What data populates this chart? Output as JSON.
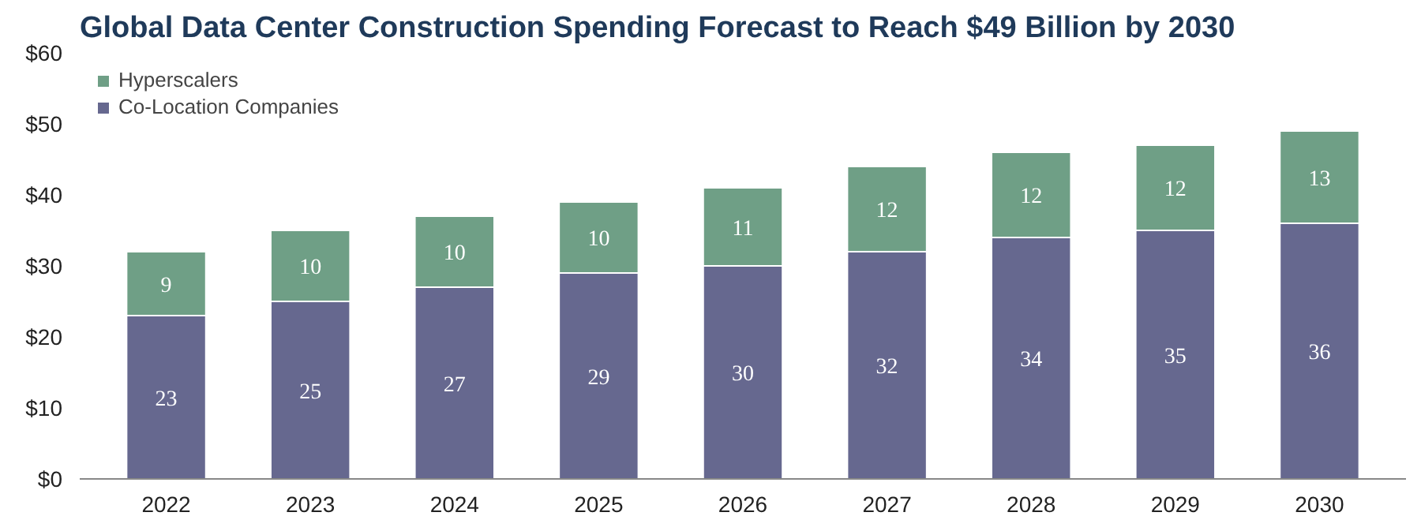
{
  "chart_data": {
    "type": "bar",
    "title": "Global Data Center Construction Spending Forecast to Reach $49 Billion by 2030",
    "categories": [
      "2022",
      "2023",
      "2024",
      "2025",
      "2026",
      "2027",
      "2028",
      "2029",
      "2030"
    ],
    "stacked": true,
    "data_labels": true,
    "legend": "top left",
    "grid": false,
    "ylim": [
      0,
      60
    ],
    "yticks": [
      {
        "value": 0,
        "label": "$0"
      },
      {
        "value": 10,
        "label": "$10"
      },
      {
        "value": 20,
        "label": "$20"
      },
      {
        "value": 30,
        "label": "$30"
      },
      {
        "value": 40,
        "label": "$40"
      },
      {
        "value": 50,
        "label": "$50"
      },
      {
        "value": 60,
        "label": "$60"
      }
    ],
    "series": [
      {
        "name": "Co-Location Companies",
        "color": "#66688f",
        "values": [
          23,
          25,
          27,
          29,
          30,
          32,
          34,
          35,
          36
        ]
      },
      {
        "name": "Hyperscalers",
        "color": "#6f9f86",
        "values": [
          9,
          10,
          10,
          10,
          11,
          12,
          12,
          12,
          13
        ]
      }
    ]
  }
}
